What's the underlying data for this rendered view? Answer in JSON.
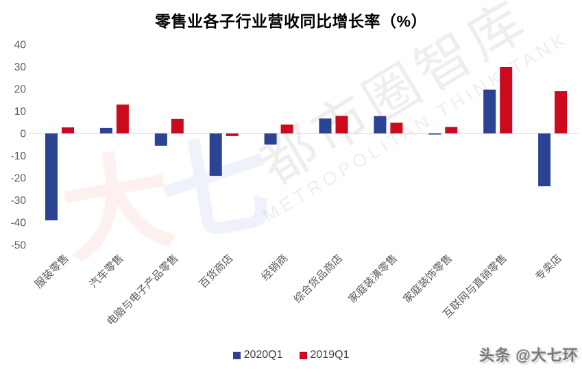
{
  "title": "零售业各子行业营收同比增长率（%）",
  "watermark": {
    "cjk": "都市圈智库",
    "latin": "METROPOLITAN THINK TANK",
    "logo_char_1": "大",
    "logo_char_2": "七"
  },
  "byline": "头条 @大七环",
  "colors": {
    "series_2020q1": "#2A4392",
    "series_2019q1": "#CC0A1E",
    "axis_text": "#595959",
    "zero_line": "#D9D9D9",
    "legend_text": "#3F3F3F",
    "title_text": "#000000"
  },
  "legend": [
    {
      "label": "2020Q1",
      "color": "#2A4392"
    },
    {
      "label": "2019Q1",
      "color": "#CC0A1E"
    }
  ],
  "chart_data": {
    "type": "bar",
    "title": "零售业各子行业营收同比增长率（%）",
    "categories": [
      "服装零售",
      "汽车零售",
      "电脑与电子产品零售",
      "百货商店",
      "经销商",
      "综合货品商店",
      "家庭装潢零售",
      "家庭装饰零售",
      "互联网与直销零售",
      "专卖店"
    ],
    "series": [
      {
        "name": "2020Q1",
        "color": "#2A4392",
        "values": [
          -39,
          2.5,
          -5.5,
          -19,
          -5,
          6.7,
          7.8,
          -0.5,
          19.7,
          -23.7
        ]
      },
      {
        "name": "2019Q1",
        "color": "#CC0A1E",
        "values": [
          2.7,
          13,
          6.5,
          -1.2,
          4,
          7.9,
          4.8,
          2.9,
          29.8,
          19
        ]
      }
    ],
    "xlabel": "",
    "ylabel": "",
    "ylim": [
      -50,
      40
    ],
    "yticks": [
      40,
      30,
      20,
      10,
      0,
      -10,
      -20,
      -30,
      -40,
      -50
    ],
    "grid": false,
    "legend_position": "bottom"
  }
}
